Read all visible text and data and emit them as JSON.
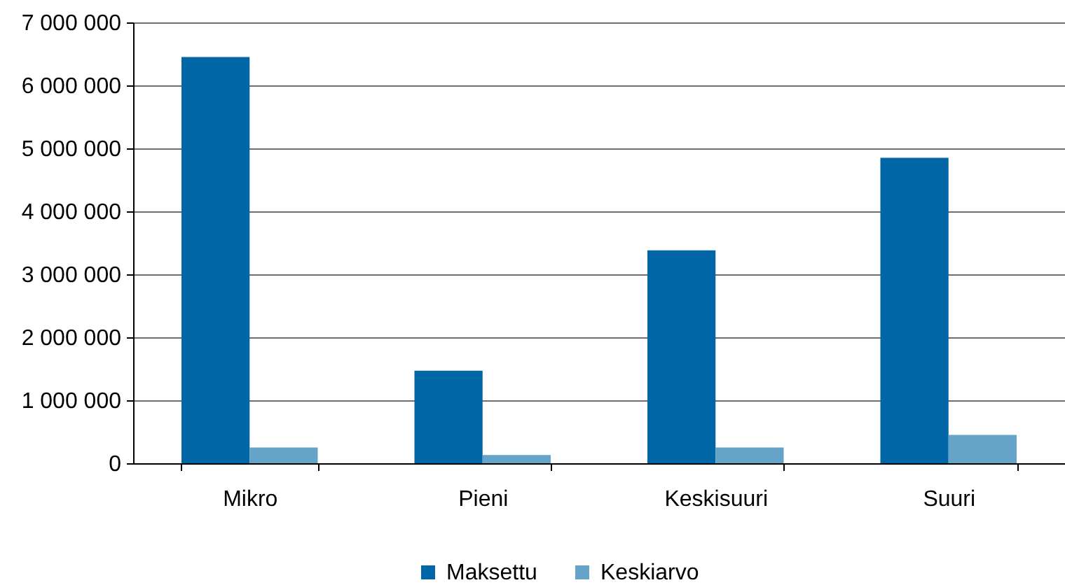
{
  "chart_data": {
    "type": "bar",
    "categories": [
      "Mikro",
      "Pieni",
      "Keskisuuri",
      "Suuri"
    ],
    "series": [
      {
        "name": "Maksettu",
        "color": "#0066a6",
        "values": [
          6450000,
          1470000,
          3380000,
          4850000
        ]
      },
      {
        "name": "Keskiarvo",
        "color": "#66a3c8",
        "values": [
          250000,
          130000,
          250000,
          450000
        ]
      }
    ],
    "ylim": [
      0,
      7000000
    ],
    "yticks": [
      0,
      {
        "value": 1000000,
        "label": "1 000 000"
      },
      {
        "value": 2000000,
        "label": "2 000 000"
      },
      {
        "value": 3000000,
        "label": "3 000 000"
      },
      {
        "value": 4000000,
        "label": "4 000 000"
      },
      {
        "value": 5000000,
        "label": "5 000 000"
      },
      {
        "value": 6000000,
        "label": "6 000 000"
      },
      {
        "value": 7000000,
        "label": "7 000 000"
      }
    ],
    "grid": "y",
    "legend": "bottom"
  }
}
